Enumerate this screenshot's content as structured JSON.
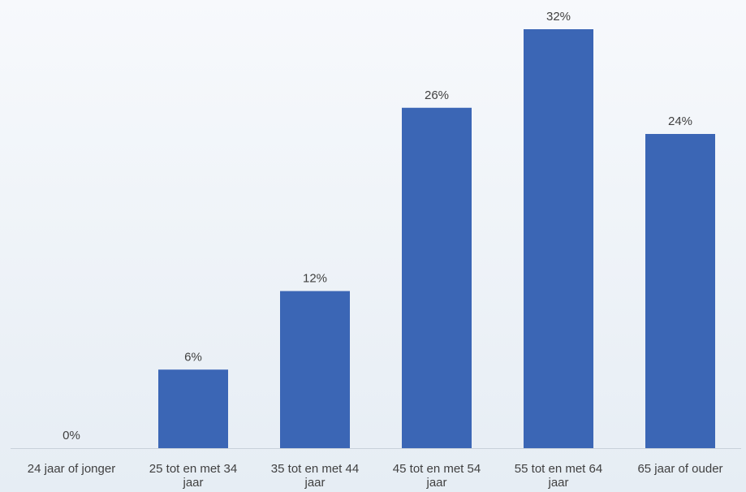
{
  "chart_data": {
    "type": "bar",
    "categories": [
      "24 jaar of jonger",
      "25 tot en met 34 jaar",
      "35 tot en met 44 jaar",
      "45 tot en met 54 jaar",
      "55 tot en met 64 jaar",
      "65 jaar of ouder"
    ],
    "category_lines": [
      [
        "24 jaar of jonger"
      ],
      [
        "25 tot en met 34",
        "jaar"
      ],
      [
        "35 tot en met 44",
        "jaar"
      ],
      [
        "45 tot en met 54",
        "jaar"
      ],
      [
        "55 tot en met 64",
        "jaar"
      ],
      [
        "65 jaar of ouder"
      ]
    ],
    "values": [
      0,
      6,
      12,
      26,
      32,
      24
    ],
    "data_labels": [
      "0%",
      "6%",
      "12%",
      "26%",
      "32%",
      "24%"
    ],
    "unit": "%",
    "ylim": [
      0,
      32
    ],
    "grid": false,
    "legend": "none",
    "bar_color": "#3b66b5",
    "axis_color": "#c8d0da",
    "text_color": "#404040"
  }
}
